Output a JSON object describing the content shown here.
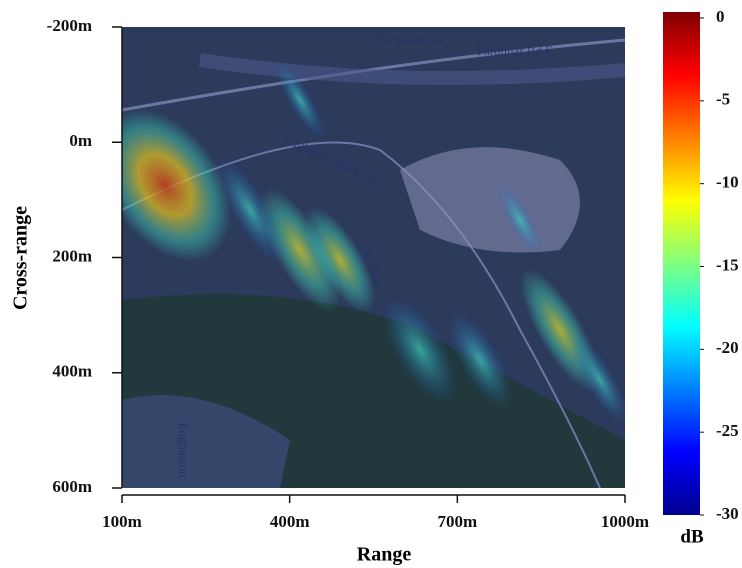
{
  "chart_data": {
    "type": "heatmap",
    "xlabel": "Range",
    "ylabel": "Cross-range",
    "xlim": [
      100,
      1000
    ],
    "xticks": [
      {
        "value": 100,
        "label": "100m"
      },
      {
        "value": 400,
        "label": "400m"
      },
      {
        "value": 700,
        "label": "700m"
      },
      {
        "value": 1000,
        "label": "1000m"
      }
    ],
    "ylim": [
      -200,
      600
    ],
    "yticks": [
      {
        "value": -200,
        "label": "-200m"
      },
      {
        "value": 0,
        "label": "0m"
      },
      {
        "value": 200,
        "label": "200m"
      },
      {
        "value": 400,
        "label": "400m"
      },
      {
        "value": 600,
        "label": "600m"
      }
    ],
    "colorbar": {
      "label": "dB",
      "clim": [
        -30,
        0
      ],
      "ticks": [
        0,
        -5,
        -10,
        -15,
        -20,
        -25,
        -30
      ],
      "colormap": "jet"
    },
    "map_labels": [
      "Farquhar Rd",
      "Farquhar Rd E",
      "Edgbaston Park Rd",
      "The Vale",
      "Edgbaston"
    ]
  }
}
